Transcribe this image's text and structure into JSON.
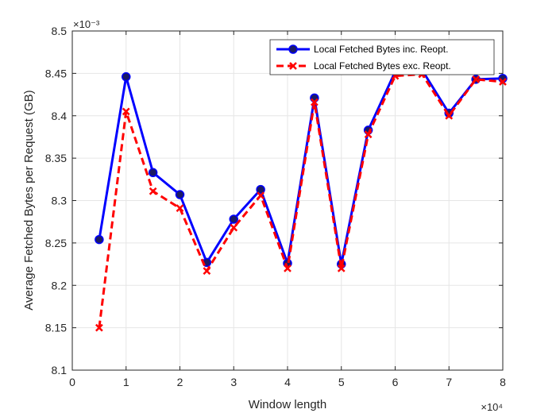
{
  "chart_data": {
    "type": "line",
    "xlabel": "Window length",
    "ylabel": "Average Fetched Bytes per Request (GB)",
    "x_exponent_label": "×10⁴",
    "y_exponent_label": "×10⁻³",
    "x_scale": 10000,
    "y_scale": 0.001,
    "xlim": [
      0,
      80000
    ],
    "ylim": [
      0.0081,
      0.0085
    ],
    "x_ticks": [
      0,
      10000,
      20000,
      30000,
      40000,
      50000,
      60000,
      70000,
      80000
    ],
    "x_tick_labels": [
      "0",
      "1",
      "2",
      "3",
      "4",
      "5",
      "6",
      "7",
      "8"
    ],
    "y_ticks": [
      0.0081,
      0.00815,
      0.0082,
      0.00825,
      0.0083,
      0.00835,
      0.0084,
      0.00845,
      0.0085
    ],
    "y_tick_labels": [
      "8.1",
      "8.15",
      "8.2",
      "8.25",
      "8.3",
      "8.35",
      "8.4",
      "8.45",
      "8.5"
    ],
    "grid": true,
    "legend_position": "top-right",
    "x": [
      5000,
      10000,
      15000,
      20000,
      25000,
      30000,
      35000,
      40000,
      45000,
      50000,
      55000,
      60000,
      65000,
      70000,
      75000,
      80000
    ],
    "series": [
      {
        "name": "Local Fetched Bytes inc. Reopt.",
        "color": "#0000ff",
        "line_style": "solid",
        "marker": "circle",
        "values": [
          0.008254,
          0.008446,
          0.008333,
          0.008307,
          0.008227,
          0.008278,
          0.008313,
          0.008226,
          0.008421,
          0.008225,
          0.008383,
          0.008452,
          0.008454,
          0.008403,
          0.008443,
          0.008444
        ]
      },
      {
        "name": "Local Fetched Bytes exc. Reopt.",
        "color": "#ff0000",
        "line_style": "dashed",
        "marker": "x",
        "values": [
          0.00815,
          0.008405,
          0.008311,
          0.008291,
          0.008217,
          0.008268,
          0.008306,
          0.00822,
          0.008416,
          0.00822,
          0.008378,
          0.008447,
          0.008449,
          0.0084,
          0.008443,
          0.00844
        ]
      }
    ]
  }
}
